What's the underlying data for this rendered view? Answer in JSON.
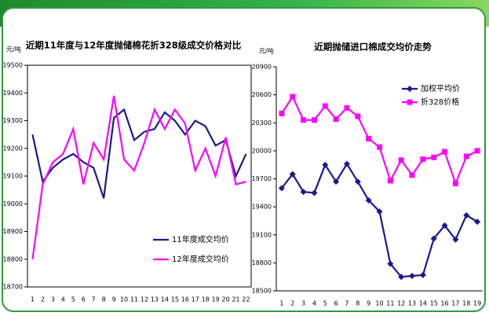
{
  "chart_data": [
    {
      "type": "line",
      "title": "近期11年度与12年度抛储棉花折328级成交价格对比",
      "y_label": "元/吨",
      "categories": [
        "1",
        "2",
        "3",
        "4",
        "5",
        "6",
        "7",
        "8",
        "9",
        "10",
        "11",
        "12",
        "13",
        "14",
        "15",
        "16",
        "17",
        "18",
        "19",
        "20",
        "21",
        "22"
      ],
      "series": [
        {
          "name": "11年度成交均价",
          "color": "#1a1a8c",
          "marker": "none",
          "values": [
            19250,
            19080,
            19130,
            19160,
            19180,
            19150,
            19130,
            19020,
            19310,
            19340,
            19230,
            19260,
            19270,
            19330,
            19300,
            19250,
            19300,
            19280,
            19210,
            19230,
            19100,
            19180
          ]
        },
        {
          "name": "12年度成交均价",
          "color": "#ff00ff",
          "marker": "none",
          "values": [
            18800,
            19070,
            19150,
            19180,
            19270,
            19070,
            19220,
            19160,
            19390,
            19160,
            19120,
            19220,
            19340,
            19270,
            19340,
            19290,
            19120,
            19200,
            19100,
            19240,
            19070,
            19080
          ]
        }
      ],
      "ylim": [
        18700,
        19500
      ],
      "yticks": [
        18700,
        18800,
        18900,
        19000,
        19100,
        19200,
        19300,
        19400,
        19500
      ],
      "legend": "lower-right"
    },
    {
      "type": "line",
      "title": "近期抛储进口棉成交均价走势",
      "y_label": "元/吨",
      "categories": [
        "1",
        "2",
        "3",
        "4",
        "5",
        "6",
        "7",
        "8",
        "9",
        "10",
        "11",
        "12",
        "13",
        "14",
        "15",
        "16",
        "17",
        "18",
        "19"
      ],
      "series": [
        {
          "name": "加权平均价",
          "color": "#1a1a8c",
          "marker": "diamond",
          "values": [
            19600,
            19750,
            19560,
            19550,
            19850,
            19670,
            19860,
            19670,
            19470,
            19350,
            18790,
            18650,
            18660,
            18670,
            19060,
            19200,
            19050,
            19310,
            19240
          ]
        },
        {
          "name": "折328价格",
          "color": "#ff00ff",
          "marker": "square",
          "values": [
            20400,
            20580,
            20330,
            20330,
            20480,
            20340,
            20460,
            20370,
            20130,
            20040,
            19680,
            19900,
            19740,
            19910,
            19930,
            19990,
            19650,
            19940,
            20000
          ]
        }
      ],
      "ylim": [
        18500,
        20900
      ],
      "yticks": [
        18500,
        18800,
        19100,
        19400,
        19700,
        20000,
        20300,
        20600,
        20900
      ],
      "legend": "upper-right"
    }
  ]
}
